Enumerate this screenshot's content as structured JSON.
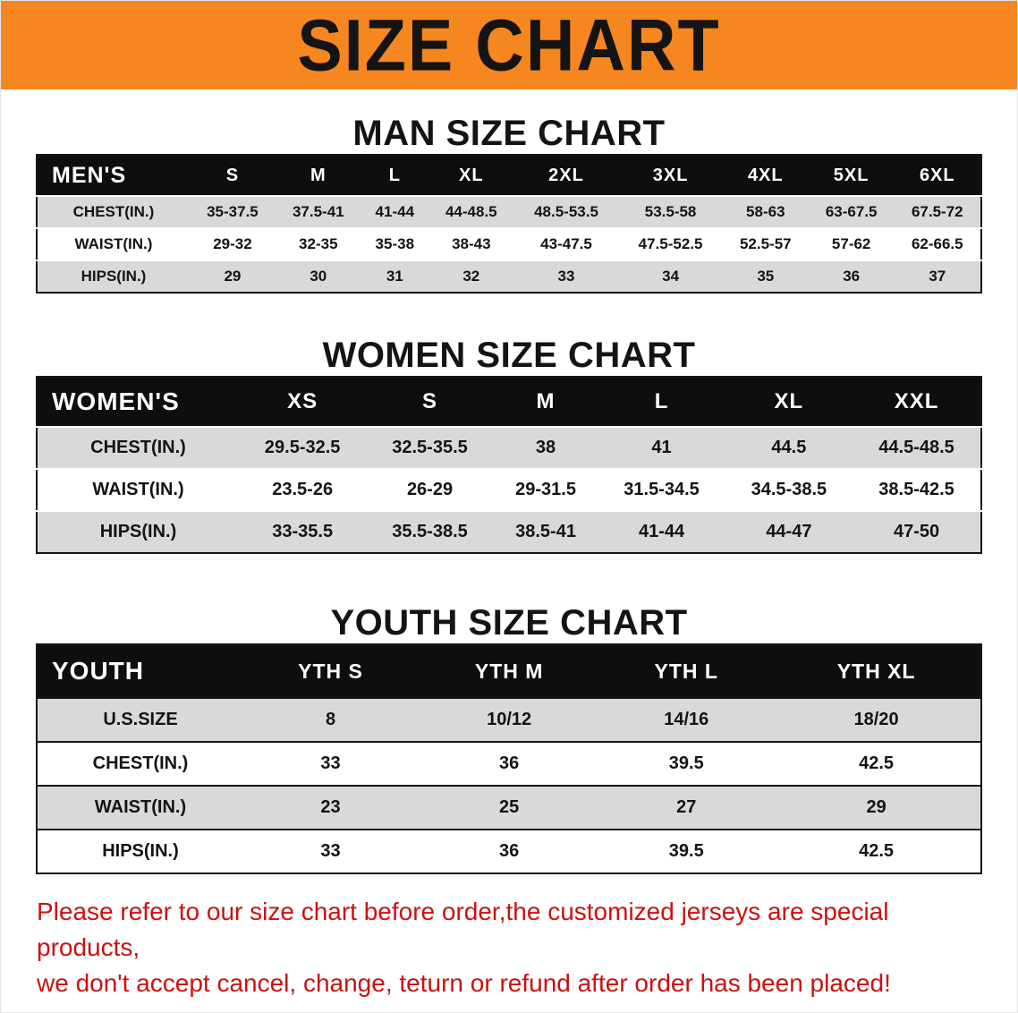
{
  "banner": {
    "title": "SIZE CHART"
  },
  "colors": {
    "banner_bg": "#F6861F",
    "header_row_bg": "#0e0e0e",
    "stripe_row_bg": "#d9d9d9",
    "disclaimer_text": "#CB1111"
  },
  "sections": [
    {
      "heading": "MAN SIZE CHART",
      "table": {
        "header": [
          "MEN'S",
          "S",
          "M",
          "L",
          "XL",
          "2XL",
          "3XL",
          "4XL",
          "5XL",
          "6XL"
        ],
        "rows": [
          [
            "CHEST(IN.)",
            "35-37.5",
            "37.5-41",
            "41-44",
            "44-48.5",
            "48.5-53.5",
            "53.5-58",
            "58-63",
            "63-67.5",
            "67.5-72"
          ],
          [
            "WAIST(IN.)",
            "29-32",
            "32-35",
            "35-38",
            "38-43",
            "43-47.5",
            "47.5-52.5",
            "52.5-57",
            "57-62",
            "62-66.5"
          ],
          [
            "HIPS(IN.)",
            "29",
            "30",
            "31",
            "32",
            "33",
            "34",
            "35",
            "36",
            "37"
          ]
        ]
      }
    },
    {
      "heading": "WOMEN SIZE CHART",
      "table": {
        "header": [
          "WOMEN'S",
          "XS",
          "S",
          "M",
          "L",
          "XL",
          "XXL"
        ],
        "rows": [
          [
            "CHEST(IN.)",
            "29.5-32.5",
            "32.5-35.5",
            "38",
            "41",
            "44.5",
            "44.5-48.5"
          ],
          [
            "WAIST(IN.)",
            "23.5-26",
            "26-29",
            "29-31.5",
            "31.5-34.5",
            "34.5-38.5",
            "38.5-42.5"
          ],
          [
            "HIPS(IN.)",
            "33-35.5",
            "35.5-38.5",
            "38.5-41",
            "41-44",
            "44-47",
            "47-50"
          ]
        ]
      }
    },
    {
      "heading": "YOUTH SIZE CHART",
      "table": {
        "header": [
          "YOUTH",
          "YTH S",
          "YTH M",
          "YTH L",
          "YTH XL"
        ],
        "rows": [
          [
            "U.S.SIZE",
            "8",
            "10/12",
            "14/16",
            "18/20"
          ],
          [
            "CHEST(IN.)",
            "33",
            "36",
            "39.5",
            "42.5"
          ],
          [
            "WAIST(IN.)",
            "23",
            "25",
            "27",
            "29"
          ],
          [
            "HIPS(IN.)",
            "33",
            "36",
            "39.5",
            "42.5"
          ]
        ]
      }
    }
  ],
  "footer": {
    "line1": "Please refer to our size chart before order,the customized jerseys are special products,",
    "line2": "we don't accept cancel, change, teturn or refund after order has been placed!"
  }
}
